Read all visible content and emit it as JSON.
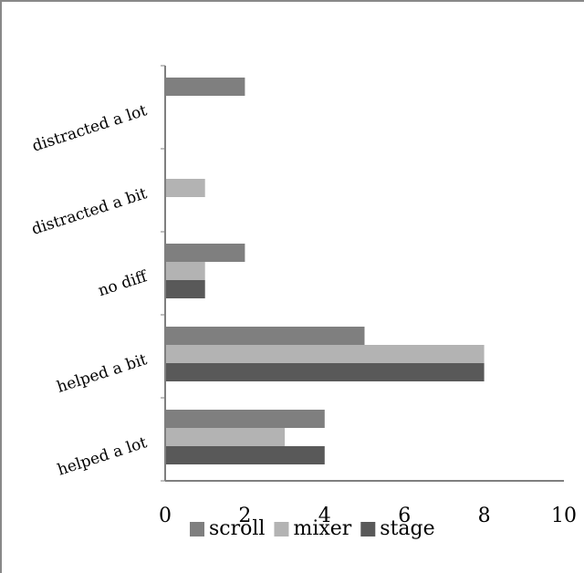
{
  "colors": {
    "scroll": "#7f7f7f",
    "mixer": "#b3b3b3",
    "stage": "#595959",
    "axis": "#7f7f7f",
    "frame": "#888888"
  },
  "chart_data": {
    "type": "bar",
    "orientation": "horizontal",
    "title": "",
    "xlabel": "",
    "ylabel": "",
    "xlim": [
      0,
      10
    ],
    "xticks": [
      0,
      2,
      4,
      6,
      8,
      10
    ],
    "grid": false,
    "legend_position": "bottom",
    "categories": [
      "distracted a lot",
      "distracted a bit",
      "no diff",
      "helped a bit",
      "helped a lot"
    ],
    "series": [
      {
        "name": "scroll",
        "values": [
          2,
          0,
          2,
          5,
          4
        ]
      },
      {
        "name": "mixer",
        "values": [
          0,
          1,
          1,
          8,
          3
        ]
      },
      {
        "name": "stage",
        "values": [
          0,
          0,
          1,
          8,
          4
        ]
      }
    ]
  }
}
